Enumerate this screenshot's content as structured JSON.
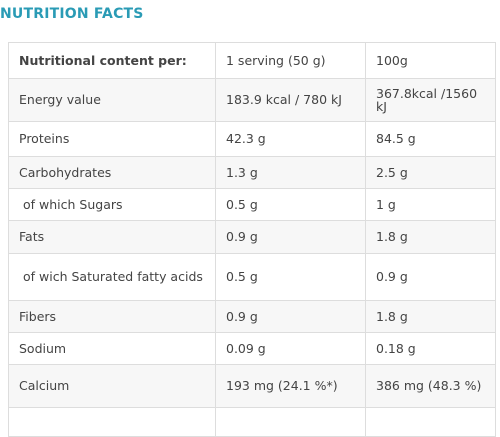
{
  "header": {
    "title": "NUTRITION FACTS"
  },
  "table": {
    "header": [
      "Nutritional content per:",
      "1 serving (50 g)",
      "100g"
    ],
    "rows": [
      [
        "Energy value",
        "183.9 kcal / 780 kJ",
        "367.8kcal /1560 kJ"
      ],
      [
        "Proteins",
        "42.3 g",
        "84.5 g"
      ],
      [
        "Carbohydrates",
        "1.3 g",
        "2.5 g"
      ],
      [
        "of which Sugars",
        "0.5 g",
        "1 g"
      ],
      [
        "Fats",
        "0.9 g",
        "1.8 g"
      ],
      [
        "of wich Saturated fatty acids",
        "0.5 g",
        "0.9 g"
      ],
      [
        "Fibers",
        "0.9 g",
        "1.8 g"
      ],
      [
        "Sodium",
        "0.09 g",
        "0.18 g"
      ],
      [
        "Calcium",
        "193 mg (24.1 %*)",
        "386 mg (48.3 %)"
      ]
    ]
  }
}
